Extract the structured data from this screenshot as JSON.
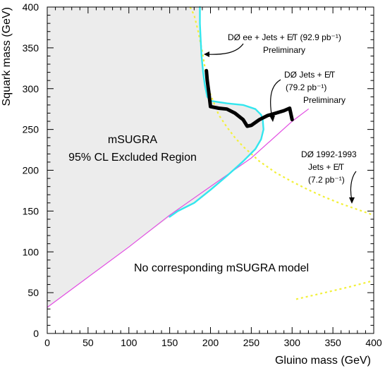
{
  "chart_data": {
    "type": "line",
    "title": "",
    "xlabel": "Gluino mass (GeV)",
    "ylabel": "Squark mass (GeV)",
    "xlim": [
      0,
      400
    ],
    "ylim": [
      0,
      400
    ],
    "xticks": [
      0,
      50,
      100,
      150,
      200,
      250,
      300,
      350,
      400
    ],
    "yticks": [
      0,
      50,
      100,
      150,
      200,
      250,
      300,
      350,
      400
    ],
    "grid": false,
    "colors": {
      "excluded_fill": "#ececec",
      "cyan": "#33e6ee",
      "black": "#000000",
      "yellow": "#f2f03a",
      "magenta": "#e24ce2"
    },
    "series": [
      {
        "key": "d0_jets_79",
        "color": "#000000",
        "style": "thick",
        "x": [
          195,
          196,
          198,
          200,
          210,
          220,
          230,
          240,
          245,
          250,
          260,
          270,
          280,
          290,
          297,
          300
        ],
        "y": [
          322,
          310,
          295,
          278,
          276,
          275,
          270,
          262,
          254,
          255,
          262,
          267,
          270,
          273,
          276,
          262
        ]
      },
      {
        "key": "d0_ee_92",
        "color": "#33e6ee",
        "style": "solid",
        "x": [
          187,
          187,
          188,
          189,
          191,
          193,
          196,
          200,
          220,
          240,
          255,
          262,
          264,
          265,
          262,
          255,
          240,
          220,
          200,
          180,
          160,
          150
        ],
        "y": [
          400,
          380,
          360,
          340,
          320,
          305,
          290,
          285,
          282,
          280,
          275,
          268,
          262,
          250,
          238,
          226,
          211,
          193,
          176,
          160,
          150,
          143
        ]
      },
      {
        "key": "d0_1992_1993",
        "color": "#f2f03a",
        "style": "dotted",
        "x": [
          175,
          180,
          185,
          190,
          195,
          200,
          210,
          220,
          230,
          240,
          250,
          260,
          280,
          300,
          320,
          340,
          360,
          380,
          400
        ],
        "y": [
          400,
          390,
          370,
          345,
          315,
          293,
          268,
          253,
          240,
          229,
          220,
          211,
          197,
          186,
          176,
          167,
          159,
          152,
          145
        ]
      },
      {
        "key": "d0_1992_1993_extra",
        "color": "#f2f03a",
        "style": "dotted",
        "x": [
          305,
          340,
          370,
          397
        ],
        "y": [
          42,
          50,
          57,
          64
        ]
      },
      {
        "key": "msugra_boundary",
        "color": "#e24ce2",
        "style": "solid",
        "x": [
          0,
          50,
          100,
          150,
          200,
          250,
          300,
          320
        ],
        "y": [
          32,
          69,
          106,
          145,
          180,
          215,
          260,
          275
        ]
      }
    ],
    "excluded_region": {
      "label_line1": "mSUGRA",
      "label_line2": "95% CL Excluded Region",
      "x": [
        0,
        187,
        187,
        188,
        189,
        191,
        193,
        196,
        200,
        220,
        240,
        255,
        262,
        264,
        265,
        262,
        255,
        240,
        220,
        200,
        180,
        160,
        150,
        100,
        50,
        0
      ],
      "y": [
        400,
        400,
        380,
        360,
        340,
        320,
        305,
        290,
        285,
        282,
        280,
        275,
        268,
        262,
        250,
        238,
        226,
        211,
        193,
        176,
        160,
        150,
        143,
        106,
        69,
        32
      ]
    },
    "no_model_label": "No corresponding mSUGRA model",
    "annotations": {
      "ee": {
        "line1": "DØ ee + Jets + E̸T (92.9 pb⁻¹)",
        "line2": "Preliminary"
      },
      "jets": {
        "line1": "DØ Jets + E̸T",
        "line2": "(79.2 pb⁻¹)",
        "line3": "Preliminary"
      },
      "old": {
        "line1": "DØ 1992-1993",
        "line2": "Jets + E̸T",
        "line3": "(7.2 pb⁻¹)"
      }
    }
  }
}
